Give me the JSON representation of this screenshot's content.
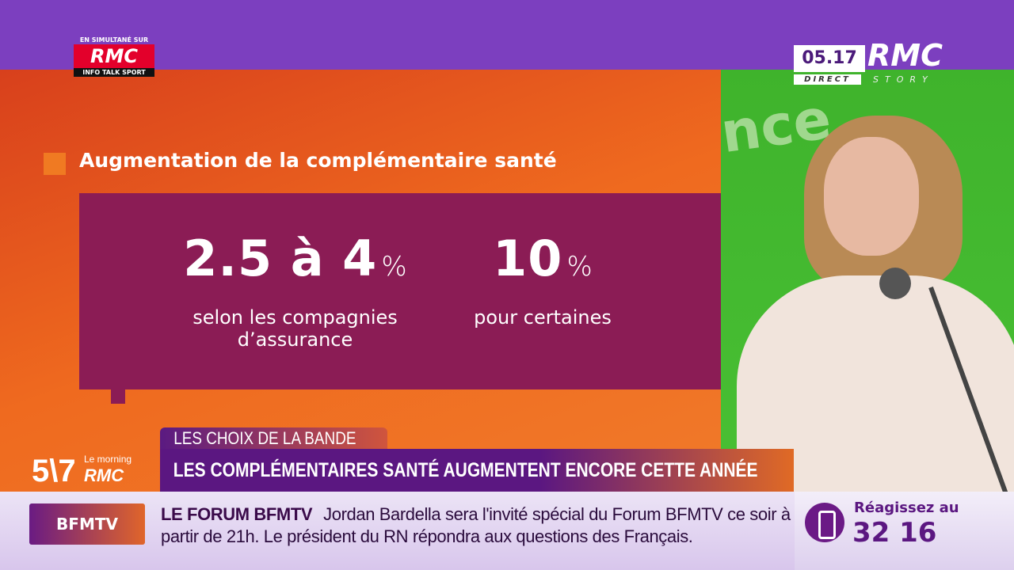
{
  "colors": {
    "top_bar": "#7c3fbf",
    "accent_orange": "#ef6a1f",
    "panel": "#8b1c55",
    "headline_bg": "#5b1781",
    "rmc_red": "#e3002b"
  },
  "simulcast": {
    "label": "EN SIMULTANÉ SUR",
    "logo": "RMC",
    "tagline": "INFO TALK SPORT"
  },
  "live_bug": {
    "time": "05.17",
    "status": "DIRECT",
    "channel": "RMC",
    "sub": "STORY"
  },
  "graphic": {
    "title": "Augmentation de la complémentaire santé",
    "stats": [
      {
        "value": "2.5 à 4",
        "unit": "%",
        "line1": "selon les compagnies",
        "line2": "d’assurance"
      },
      {
        "value": "10",
        "unit": "%",
        "line1": "pour certaines",
        "line2": ""
      }
    ]
  },
  "show": {
    "number": "5\\7",
    "name": "Le morning",
    "brand": "RMC"
  },
  "lower_third": {
    "kicker": "LES CHOIX DE LA BANDE",
    "headline": "LES COMPLÉMENTAIRES SANTÉ AUGMENTENT ENCORE CETTE ANNÉE"
  },
  "ticker": {
    "source": "BFMTV",
    "label": "LE FORUM BFMTV",
    "text": "Jordan Bardella sera l'invité spécial du Forum BFMTV ce soir à partir de 21h. Le président du RN répondra aux questions des Français."
  },
  "react": {
    "icon": "phone-icon",
    "label": "Réagissez au",
    "number": "32 16"
  }
}
